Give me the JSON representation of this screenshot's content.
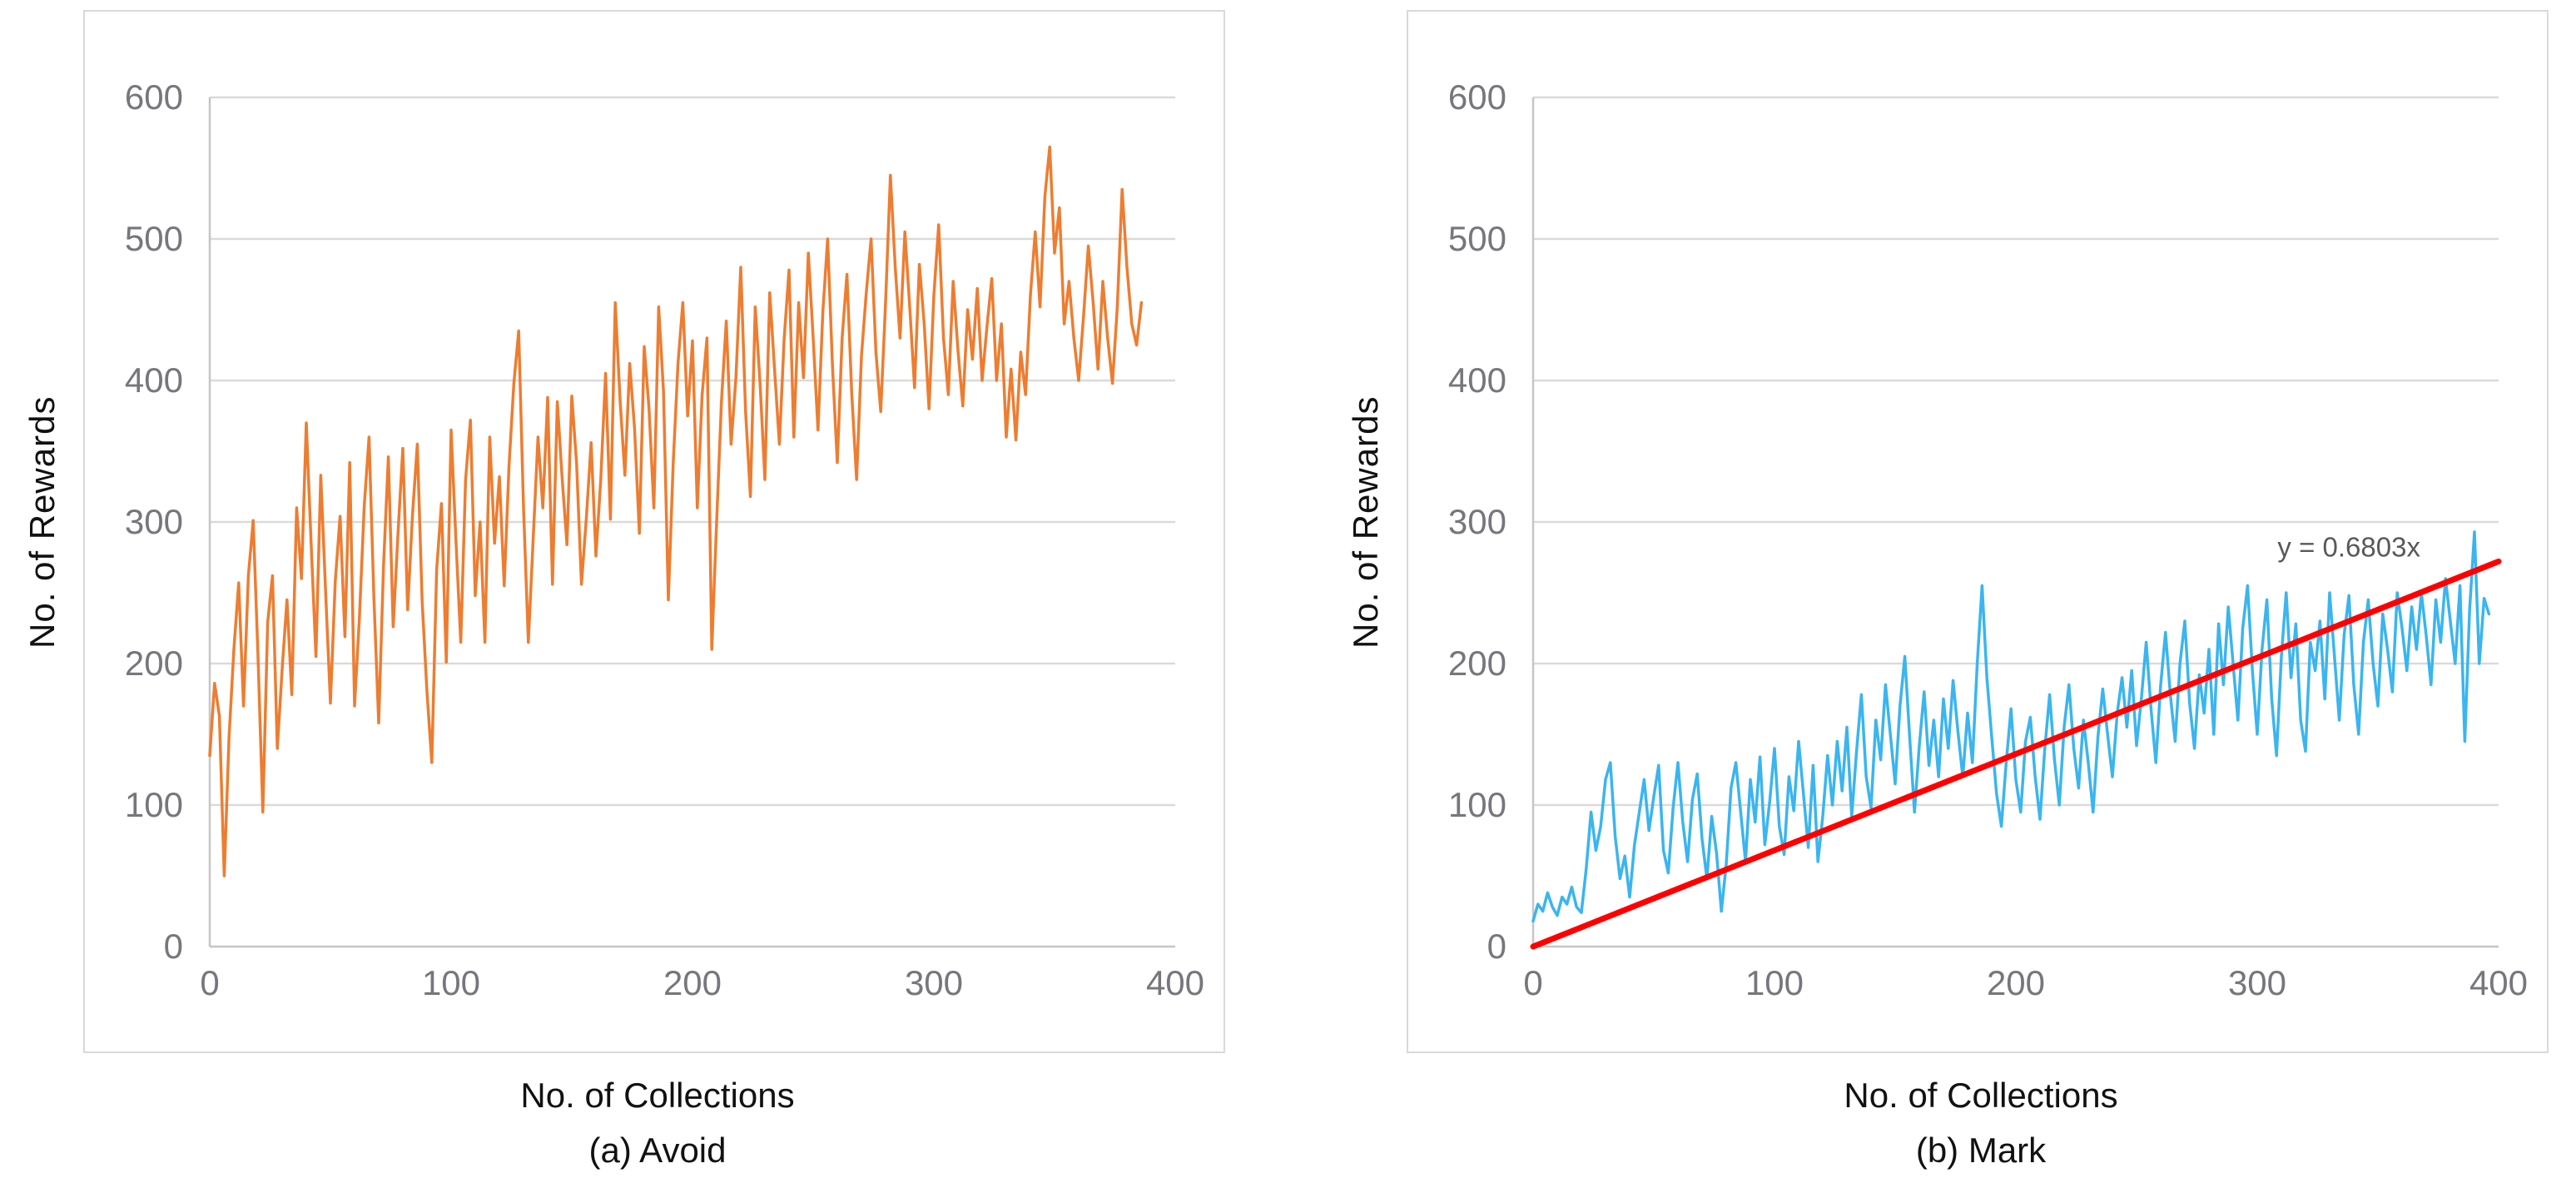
{
  "theme": {
    "background": "#FFFFFF",
    "panel_border": "#D9D9D9",
    "grid_color": "#DADADA",
    "axis_color": "#C6C6C6",
    "tick_text_color": "#76767C",
    "title_text_color": "#111111"
  },
  "chart_data": [
    {
      "type": "line",
      "caption": "(a) Avoid",
      "xlabel": "No. of Collections",
      "ylabel": "No. of Rewards",
      "xlim": [
        0,
        400
      ],
      "ylim": [
        0,
        600
      ],
      "xticks": [
        0,
        100,
        200,
        300,
        400
      ],
      "yticks": [
        0,
        100,
        200,
        300,
        400,
        500,
        600
      ],
      "grid": "horizontal",
      "legend": "none",
      "series": [
        {
          "name": "Avoid",
          "color": "#ED7D31",
          "x_start": 0,
          "x_step": 2,
          "values": [
            135,
            186,
            163,
            50,
            148,
            210,
            257,
            170,
            262,
            301,
            205,
            95,
            229,
            262,
            140,
            196,
            245,
            178,
            310,
            260,
            370,
            285,
            205,
            333,
            251,
            172,
            258,
            304,
            219,
            342,
            170,
            232,
            311,
            360,
            247,
            158,
            269,
            346,
            226,
            292,
            352,
            238,
            305,
            355,
            244,
            180,
            130,
            266,
            313,
            201,
            365,
            287,
            215,
            330,
            372,
            248,
            300,
            215,
            360,
            285,
            332,
            255,
            340,
            398,
            435,
            310,
            215,
            288,
            360,
            310,
            388,
            256,
            385,
            331,
            284,
            389,
            341,
            256,
            302,
            356,
            276,
            330,
            405,
            302,
            455,
            386,
            333,
            412,
            366,
            292,
            424,
            380,
            310,
            452,
            392,
            245,
            341,
            412,
            455,
            375,
            428,
            310,
            390,
            430,
            210,
            300,
            385,
            442,
            355,
            402,
            480,
            378,
            318,
            452,
            398,
            330,
            462,
            408,
            355,
            430,
            478,
            360,
            455,
            402,
            490,
            430,
            365,
            448,
            500,
            410,
            342,
            430,
            475,
            390,
            330,
            417,
            462,
            500,
            420,
            378,
            455,
            545,
            480,
            430,
            505,
            452,
            395,
            482,
            440,
            380,
            460,
            510,
            430,
            390,
            470,
            421,
            382,
            450,
            415,
            465,
            400,
            438,
            472,
            400,
            440,
            360,
            408,
            358,
            420,
            390,
            460,
            505,
            452,
            530,
            565,
            490,
            522,
            440,
            470,
            430,
            400,
            445,
            495,
            455,
            408,
            470,
            430,
            398,
            452,
            535,
            480,
            440,
            425,
            455
          ]
        }
      ]
    },
    {
      "type": "line",
      "caption": "(b) Mark",
      "xlabel": "No. of Collections",
      "ylabel": "No. of Rewards",
      "xlim": [
        0,
        400
      ],
      "ylim": [
        0,
        600
      ],
      "xticks": [
        0,
        100,
        200,
        300,
        400
      ],
      "yticks": [
        0,
        100,
        200,
        300,
        400,
        500,
        600
      ],
      "grid": "horizontal",
      "legend": "none",
      "series": [
        {
          "name": "Mark",
          "color": "#3AB5EF",
          "x_start": 0,
          "x_step": 2,
          "values": [
            18,
            30,
            25,
            38,
            28,
            22,
            35,
            30,
            42,
            28,
            24,
            55,
            95,
            68,
            85,
            118,
            130,
            78,
            48,
            64,
            35,
            72,
            95,
            118,
            82,
            106,
            128,
            68,
            52,
            98,
            130,
            88,
            60,
            104,
            122,
            76,
            48,
            92,
            66,
            25,
            58,
            112,
            130,
            95,
            60,
            118,
            88,
            134,
            72,
            102,
            140,
            85,
            65,
            120,
            96,
            145,
            108,
            70,
            128,
            60,
            92,
            135,
            100,
            145,
            110,
            155,
            92,
            138,
            178,
            120,
            98,
            160,
            132,
            185,
            150,
            115,
            170,
            205,
            148,
            95,
            142,
            180,
            128,
            160,
            120,
            175,
            140,
            188,
            152,
            120,
            165,
            130,
            200,
            255,
            190,
            148,
            108,
            85,
            130,
            168,
            118,
            95,
            145,
            162,
            120,
            90,
            140,
            178,
            132,
            100,
            155,
            185,
            140,
            112,
            160,
            130,
            95,
            148,
            182,
            150,
            120,
            165,
            190,
            155,
            195,
            142,
            175,
            215,
            168,
            130,
            185,
            222,
            178,
            145,
            200,
            230,
            172,
            140,
            192,
            165,
            210,
            150,
            228,
            185,
            240,
            200,
            160,
            225,
            255,
            195,
            150,
            210,
            245,
            175,
            135,
            205,
            250,
            190,
            228,
            160,
            138,
            215,
            195,
            230,
            175,
            250,
            205,
            160,
            220,
            248,
            185,
            150,
            215,
            245,
            200,
            170,
            235,
            210,
            180,
            250,
            225,
            195,
            240,
            210,
            250,
            220,
            185,
            245,
            215,
            260,
            230,
            200,
            255,
            145,
            238,
            293,
            200,
            246,
            235
          ]
        }
      ],
      "trendline": {
        "label": "y = 0.6803x",
        "slope": 0.6803,
        "intercept": 0,
        "color": "#FF0000",
        "label_color": "#595959",
        "x_range": [
          0,
          400
        ],
        "label_x": 338,
        "label_y": 282
      }
    }
  ]
}
